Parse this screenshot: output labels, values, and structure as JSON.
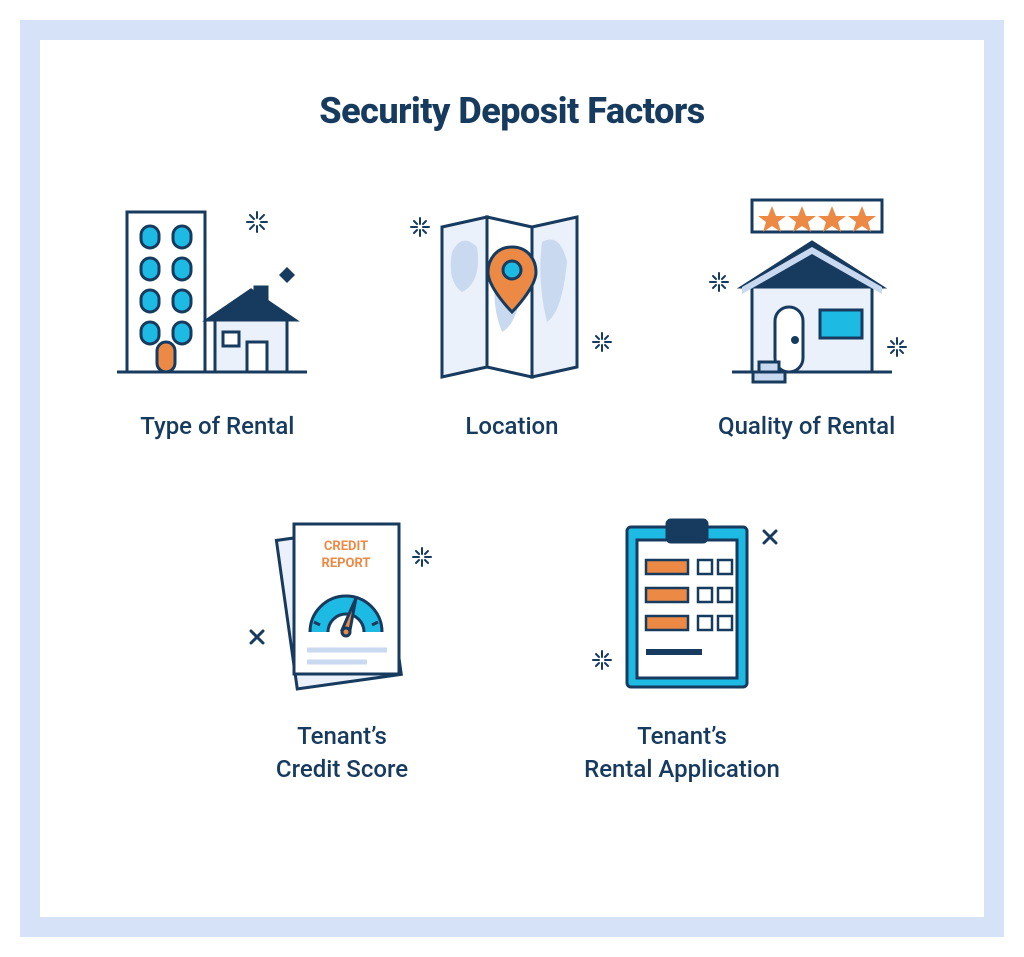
{
  "type": "infographic",
  "colors": {
    "frame_border": "#d6e2f7",
    "card_background": "#ffffff",
    "title": "#173a5f",
    "label": "#173a5f",
    "stroke": "#173a5f",
    "accent_orange": "#ec8a45",
    "accent_cyan": "#1dbbe3",
    "pale_fill": "#eaf1fb",
    "mid_fill": "#c9d9ef",
    "white": "#ffffff"
  },
  "typography": {
    "title_fontsize": 36,
    "title_weight": 800,
    "label_fontsize": 24,
    "label_weight": 500
  },
  "title": "Security Deposit Factors",
  "credit_report_text": "CREDIT REPORT",
  "factors": [
    {
      "id": "type-of-rental",
      "label": "Type of Rental",
      "icon": "building-house-icon"
    },
    {
      "id": "location",
      "label": "Location",
      "icon": "map-pin-icon"
    },
    {
      "id": "quality",
      "label": "Quality of Rental",
      "icon": "house-stars-icon"
    },
    {
      "id": "credit-score",
      "label": "Tenant’s\nCredit Score",
      "icon": "credit-report-icon"
    },
    {
      "id": "rental-app",
      "label": "Tenant’s\nRental Application",
      "icon": "clipboard-icon"
    }
  ]
}
